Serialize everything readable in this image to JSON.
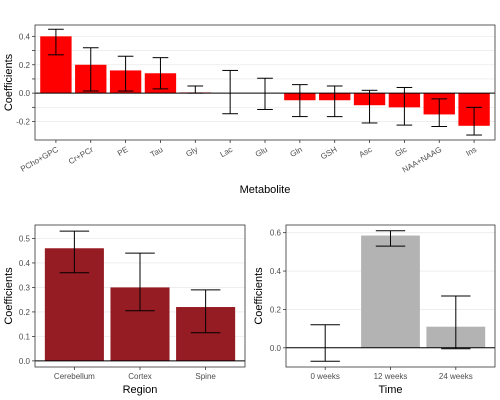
{
  "chart_data": [
    {
      "type": "bar",
      "xlabel": "Metabolite",
      "ylabel": "Coefficients",
      "ylim": [
        -0.33,
        0.48
      ],
      "yticks": [
        -0.2,
        -0.1,
        0.0,
        0.1,
        0.2,
        0.3,
        0.4
      ],
      "yticks_display": [
        "-0.2",
        "",
        "0.0",
        "",
        "0.2",
        "",
        "0.4"
      ],
      "bar_color": "#ff0000",
      "categories": [
        "PCho+GPC",
        "Cr+PCr",
        "PE",
        "Tau",
        "Gly",
        "Lac",
        "Glu",
        "Gln",
        "GSH",
        "Asc",
        "Glc",
        "NAA+NAAG",
        "Ins"
      ],
      "values": [
        0.4,
        0.2,
        0.16,
        0.14,
        0.005,
        0.0,
        0.0,
        -0.05,
        -0.05,
        -0.085,
        -0.1,
        -0.15,
        -0.23
      ],
      "error_low": [
        0.27,
        0.015,
        0.015,
        0.03,
        0.0,
        -0.145,
        -0.115,
        -0.165,
        -0.165,
        -0.21,
        -0.225,
        -0.235,
        -0.295
      ],
      "error_high": [
        0.45,
        0.32,
        0.26,
        0.25,
        0.05,
        0.16,
        0.105,
        0.06,
        0.05,
        0.02,
        0.04,
        -0.04,
        -0.1
      ],
      "grid": true
    },
    {
      "type": "bar",
      "xlabel": "Region",
      "ylabel": "Coefficients",
      "ylim": [
        -0.025,
        0.555
      ],
      "yticks": [
        0.0,
        0.1,
        0.2,
        0.3,
        0.4,
        0.5
      ],
      "yticks_display": [
        "0.0",
        "0.1",
        "0.2",
        "0.3",
        "0.4",
        "0.5"
      ],
      "bar_color": "#961c23",
      "categories": [
        "Cerebellum",
        "Cortex",
        "Spine"
      ],
      "values": [
        0.46,
        0.3,
        0.22
      ],
      "error_low": [
        0.36,
        0.205,
        0.115
      ],
      "error_high": [
        0.53,
        0.44,
        0.29
      ],
      "grid": true
    },
    {
      "type": "bar",
      "xlabel": "Time",
      "ylabel": "Coefficients",
      "ylim": [
        -0.1,
        0.64
      ],
      "yticks": [
        0.0,
        0.2,
        0.4,
        0.6
      ],
      "yticks_display": [
        "0.0",
        "0.2",
        "0.4",
        "0.6"
      ],
      "bar_color": "#b3b3b3",
      "categories": [
        "0 weeks",
        "12 weeks",
        "24 weeks"
      ],
      "values": [
        0.0,
        0.585,
        0.11
      ],
      "error_low": [
        -0.07,
        0.53,
        -0.005
      ],
      "error_high": [
        0.12,
        0.61,
        0.27
      ],
      "grid": true
    }
  ]
}
